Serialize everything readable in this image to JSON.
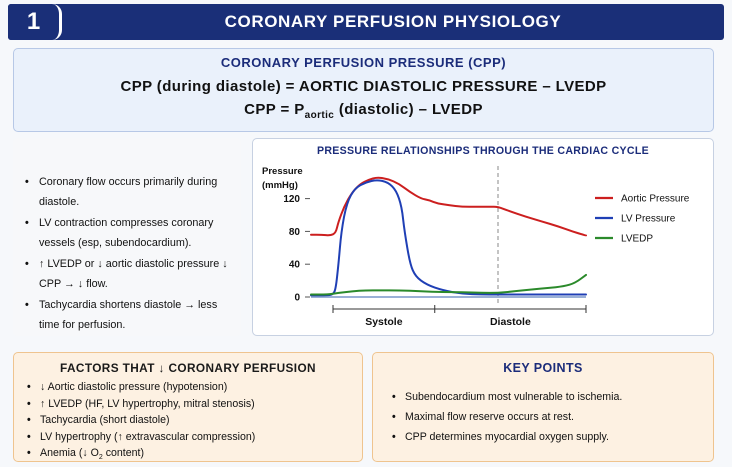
{
  "header": {
    "number": "1",
    "title": "CORONARY PERFUSION PHYSIOLOGY"
  },
  "cpp": {
    "heading": "CORONARY PERFUSION PRESSURE (CPP)",
    "equation1": "CPP  (during diastole)  =  AORTIC DIASTOLIC PRESSURE  –  LVEDP",
    "equation2_left": "CPP  =  P",
    "equation2_sub": "aortic",
    "equation2_right": " (diastolic)  –  LVEDP"
  },
  "bullets": [
    "Coronary flow occurs primarily during diastole.",
    "LV contraction compresses coronary vessels (esp, subendocardium).",
    "↑ LVEDP or ↓ aortic diastolic pressure ↓ CPP → ↓ flow.",
    "Tachycardia shortens diastole → less time for perfusion."
  ],
  "chart_data": {
    "type": "line",
    "title": "PRESSURE RELATIONSHIPS THROUGH THE CARDIAC CYCLE",
    "ylabel_line1": "Pressure",
    "ylabel_line2": "(mmHg)",
    "yticks": [
      "120",
      "80",
      "40",
      "0"
    ],
    "ytick_values": [
      120,
      80,
      40,
      0
    ],
    "ylim": [
      0,
      150
    ],
    "xlim": [
      0,
      100
    ],
    "xlabels": [
      "Systole",
      "Diastole"
    ],
    "phase_boundaries": [
      8,
      45,
      100
    ],
    "diastole_start_x": 68,
    "grid": false,
    "legend_position": "right",
    "series": [
      {
        "name": "Aortic Pressure",
        "color": "#cc1f1f",
        "points": [
          [
            0,
            76
          ],
          [
            4,
            76
          ],
          [
            7,
            75
          ],
          [
            9,
            78
          ],
          [
            10,
            92
          ],
          [
            12,
            110
          ],
          [
            15,
            128
          ],
          [
            18,
            138
          ],
          [
            21,
            143
          ],
          [
            24,
            146
          ],
          [
            28,
            144
          ],
          [
            32,
            138
          ],
          [
            36,
            128
          ],
          [
            40,
            120
          ],
          [
            43,
            118
          ],
          [
            46,
            114
          ],
          [
            50,
            112
          ],
          [
            55,
            110
          ],
          [
            60,
            110
          ],
          [
            65,
            110
          ],
          [
            68,
            110
          ],
          [
            72,
            105
          ],
          [
            78,
            98
          ],
          [
            84,
            92
          ],
          [
            90,
            86
          ],
          [
            95,
            80
          ],
          [
            100,
            75
          ]
        ]
      },
      {
        "name": "LV Pressure",
        "color": "#1f3fb5",
        "points": [
          [
            0,
            2
          ],
          [
            6,
            2
          ],
          [
            8,
            3
          ],
          [
            9,
            10
          ],
          [
            10,
            40
          ],
          [
            11,
            80
          ],
          [
            13,
            115
          ],
          [
            16,
            133
          ],
          [
            20,
            140
          ],
          [
            24,
            143
          ],
          [
            28,
            140
          ],
          [
            31,
            130
          ],
          [
            33,
            110
          ],
          [
            34,
            80
          ],
          [
            36,
            40
          ],
          [
            38,
            25
          ],
          [
            42,
            15
          ],
          [
            48,
            8
          ],
          [
            55,
            4
          ],
          [
            62,
            3
          ],
          [
            68,
            3
          ],
          [
            76,
            3
          ],
          [
            85,
            3
          ],
          [
            92,
            3
          ],
          [
            100,
            3
          ]
        ]
      },
      {
        "name": "LVEDP",
        "color": "#2b8a2b",
        "points": [
          [
            0,
            3
          ],
          [
            6,
            3
          ],
          [
            10,
            5
          ],
          [
            15,
            7
          ],
          [
            20,
            8
          ],
          [
            25,
            8
          ],
          [
            32,
            8
          ],
          [
            40,
            7
          ],
          [
            48,
            6
          ],
          [
            55,
            6
          ],
          [
            62,
            5
          ],
          [
            68,
            5
          ],
          [
            74,
            7
          ],
          [
            80,
            9
          ],
          [
            86,
            11
          ],
          [
            92,
            13
          ],
          [
            96,
            17
          ],
          [
            100,
            27
          ]
        ]
      }
    ]
  },
  "factors": {
    "title": "FACTORS THAT ↓ CORONARY PERFUSION",
    "items": [
      "↓ Aortic diastolic pressure (hypotension)",
      "↑ LVEDP (HF, LV hypertrophy, mitral stenosis)",
      "Tachycardia (short diastole)",
      "LV hypertrophy (↑ extravascular compression)"
    ],
    "last_item_left": "Anemia (↓ O",
    "last_item_sub": "2",
    "last_item_right": " content)"
  },
  "keypoints": {
    "title": "KEY POINTS",
    "items": [
      "Subendocardium most vulnerable to ischemia.",
      "Maximal flow reserve occurs at rest.",
      "CPP determines myocardial oxygen supply."
    ]
  }
}
